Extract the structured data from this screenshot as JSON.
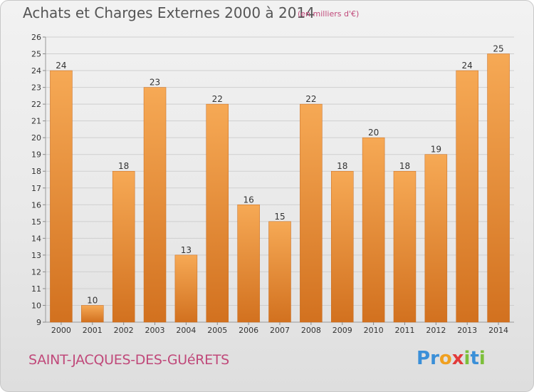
{
  "header": {
    "title": "Achats et Charges Externes 2000 à 2014",
    "subtitle": "(en milliers d'€)"
  },
  "footer": {
    "commune": "SAINT-JACQUES-DES-GUéRETS",
    "logo_letters": [
      "P",
      "r",
      "o",
      "x",
      "i",
      "t",
      "i"
    ],
    "logo_colors": [
      "#3a8fd8",
      "#3a8fd8",
      "#f0a020",
      "#e23a3a",
      "#7cbf3a",
      "#3a8fd8",
      "#7cbf3a"
    ]
  },
  "colors": {
    "bar_light": "#f6a955",
    "bar_dark": "#d2711f",
    "grid": "#cfcfcf",
    "axis_text": "#333333",
    "accent": "#c0497a"
  },
  "chart_data": {
    "type": "bar",
    "categories": [
      "2000",
      "2001",
      "2002",
      "2003",
      "2004",
      "2005",
      "2006",
      "2007",
      "2008",
      "2009",
      "2010",
      "2011",
      "2012",
      "2013",
      "2014"
    ],
    "values": [
      24,
      10,
      18,
      23,
      13,
      22,
      16,
      15,
      22,
      18,
      20,
      18,
      19,
      24,
      25
    ],
    "data_labels": [
      "24",
      "10",
      "18",
      "23",
      "13",
      "22",
      "16",
      "15",
      "22",
      "18",
      "20",
      "18",
      "19",
      "24",
      "25"
    ],
    "yticks": [
      9,
      10,
      11,
      12,
      13,
      14,
      15,
      16,
      17,
      18,
      19,
      20,
      21,
      22,
      23,
      24,
      25,
      26
    ],
    "ylim": [
      9,
      26
    ],
    "grid": true,
    "title": "Achats et Charges Externes 2000 à 2014",
    "xlabel": "",
    "ylabel": ""
  }
}
